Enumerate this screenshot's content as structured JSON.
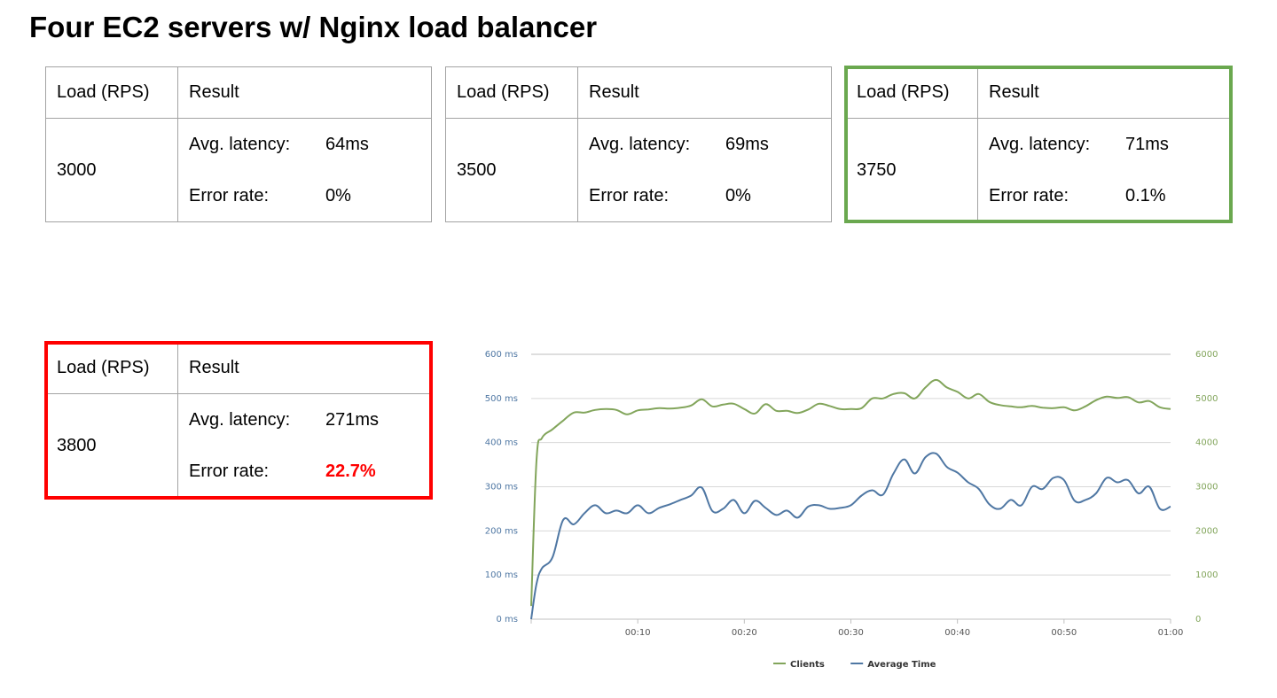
{
  "title": "Four EC2 servers w/ Nginx load balancer",
  "tables": [
    {
      "head_load": "Load (RPS)",
      "head_result": "Result",
      "load": "3000",
      "latency_label": "Avg. latency:",
      "latency": "64ms",
      "error_label": "Error rate:",
      "error": "0%",
      "highlight": "none"
    },
    {
      "head_load": "Load (RPS)",
      "head_result": "Result",
      "load": "3500",
      "latency_label": "Avg. latency:",
      "latency": "69ms",
      "error_label": "Error rate:",
      "error": "0%",
      "highlight": "none"
    },
    {
      "head_load": "Load (RPS)",
      "head_result": "Result",
      "load": "3750",
      "latency_label": "Avg. latency:",
      "latency": "71ms",
      "error_label": "Error rate:",
      "error": "0.1%",
      "highlight": "green"
    },
    {
      "head_load": "Load (RPS)",
      "head_result": "Result",
      "load": "3800",
      "latency_label": "Avg. latency:",
      "latency": "271ms",
      "error_label": "Error rate:",
      "error": "22.7%",
      "highlight": "red"
    }
  ],
  "colors": {
    "ok_outline": "#6aa84f",
    "fail_outline": "#ff0000",
    "error_text": "#ff0000",
    "clients_line": "#82a55b",
    "average_time_line": "#4f77a3"
  },
  "chart_data": {
    "type": "line",
    "title": "",
    "xlabel": "",
    "ylabel": "",
    "x_ticks": [
      "00:10",
      "00:20",
      "00:30",
      "00:40",
      "00:50",
      "01:00"
    ],
    "x_tick_seconds": [
      10,
      20,
      30,
      40,
      50,
      60
    ],
    "xlim": [
      0,
      60
    ],
    "y_left_ticks": [
      "0 ms",
      "100 ms",
      "200 ms",
      "300 ms",
      "400 ms",
      "500 ms",
      "600 ms"
    ],
    "ylim_left": [
      0,
      600
    ],
    "y_right_ticks": [
      "0",
      "1000",
      "2000",
      "3000",
      "4000",
      "5000",
      "6000"
    ],
    "ylim_right": [
      0,
      6000
    ],
    "grid": true,
    "legend_position": "bottom-center",
    "series": [
      {
        "name": "Clients",
        "axis": "right",
        "x": [
          0,
          0.5,
          1,
          2,
          3,
          4,
          5,
          6,
          7,
          8,
          9,
          10,
          11,
          12,
          13,
          14,
          15,
          16,
          17,
          18,
          19,
          20,
          21,
          22,
          23,
          24,
          25,
          26,
          27,
          28,
          29,
          30,
          31,
          32,
          33,
          34,
          35,
          36,
          37,
          38,
          39,
          40,
          41,
          42,
          43,
          44,
          45,
          46,
          47,
          48,
          49,
          50,
          51,
          52,
          53,
          54,
          55,
          56,
          57,
          58,
          59,
          60
        ],
        "values": [
          300,
          3600,
          4100,
          4300,
          4500,
          4680,
          4680,
          4740,
          4760,
          4740,
          4640,
          4730,
          4750,
          4780,
          4770,
          4790,
          4840,
          4980,
          4820,
          4860,
          4880,
          4760,
          4660,
          4870,
          4720,
          4720,
          4670,
          4750,
          4880,
          4830,
          4760,
          4760,
          4780,
          5000,
          5000,
          5100,
          5120,
          5000,
          5250,
          5420,
          5250,
          5150,
          5000,
          5100,
          4920,
          4850,
          4820,
          4800,
          4830,
          4790,
          4780,
          4800,
          4730,
          4820,
          4960,
          5040,
          5010,
          5030,
          4910,
          4940,
          4800,
          4760
        ]
      },
      {
        "name": "Average Time",
        "axis": "left",
        "x": [
          0,
          0.5,
          1,
          2,
          3,
          4,
          5,
          6,
          7,
          8,
          9,
          10,
          11,
          12,
          13,
          14,
          15,
          16,
          17,
          18,
          19,
          20,
          21,
          22,
          23,
          24,
          25,
          26,
          27,
          28,
          29,
          30,
          31,
          32,
          33,
          34,
          35,
          36,
          37,
          38,
          39,
          40,
          41,
          42,
          43,
          44,
          45,
          46,
          47,
          48,
          49,
          50,
          51,
          52,
          53,
          54,
          55,
          56,
          57,
          58,
          59,
          60
        ],
        "values": [
          0,
          80,
          115,
          140,
          225,
          215,
          240,
          258,
          240,
          246,
          240,
          258,
          240,
          252,
          260,
          270,
          280,
          298,
          245,
          250,
          270,
          240,
          268,
          252,
          236,
          246,
          230,
          255,
          258,
          250,
          252,
          258,
          280,
          292,
          282,
          330,
          362,
          330,
          367,
          375,
          345,
          332,
          310,
          295,
          260,
          250,
          270,
          258,
          300,
          295,
          320,
          315,
          268,
          270,
          285,
          320,
          310,
          315,
          285,
          300,
          250,
          255
        ]
      }
    ]
  }
}
